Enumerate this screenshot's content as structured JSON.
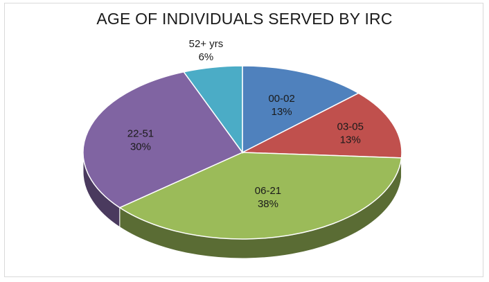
{
  "chart_data": {
    "type": "pie",
    "title": "AGE OF INDIVIDUALS SERVED BY IRC",
    "slices": [
      {
        "label": "00-02",
        "value": 13,
        "value_label": "13%",
        "color": "#4f81bd"
      },
      {
        "label": "03-05",
        "value": 13,
        "value_label": "13%",
        "color": "#c0504d"
      },
      {
        "label": "06-21",
        "value": 38,
        "value_label": "38%",
        "color": "#9bbb59"
      },
      {
        "label": "22-51",
        "value": 30,
        "value_label": "30%",
        "color": "#8064a2"
      },
      {
        "label": "52+ yrs",
        "value": 6,
        "value_label": "6%",
        "color": "#4bacc6"
      }
    ],
    "style": "3d-pie",
    "legend": "none"
  }
}
